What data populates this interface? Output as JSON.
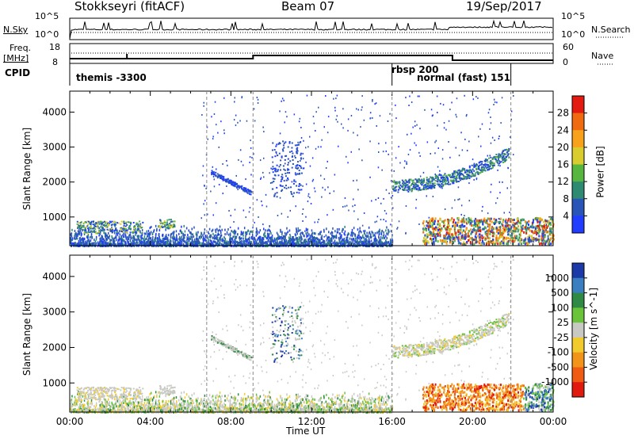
{
  "header": {
    "station": "Stokkseyri (fitACF)",
    "beam": "Beam 07",
    "date": "19/Sep/2017"
  },
  "strip": {
    "nsky_label": "N.Sky",
    "nsky_top": "10^5",
    "nsky_bottom": "10^0",
    "nsearch_label": "N.Search",
    "nsearch_top": "10^5",
    "nsearch_bottom": "10^0",
    "freq_label_1": "Freq.",
    "freq_label_2": "[MHz]",
    "freq_top": "18",
    "freq_bottom": "8",
    "nave_label": "Nave",
    "nave_top": "60",
    "nave_bottom": "0",
    "cpid_label": "CPID",
    "cpid_names": [
      "themis -3300",
      "rbsp 200",
      "normal (fast) 151"
    ]
  },
  "chart_data": [
    {
      "type": "heatmap",
      "panel": "power",
      "xlabel": "",
      "ylabel": "Slant Range [km]",
      "ylim": [
        180,
        4600
      ],
      "xlim": [
        "00:00",
        "24:00"
      ],
      "yticks": [
        1000,
        2000,
        3000,
        4000
      ],
      "colorbar": {
        "label": "Power [dB]",
        "ticks": [
          4,
          8,
          12,
          16,
          20,
          24,
          28
        ],
        "colors": [
          "#1f3cff",
          "#2a55b8",
          "#2f8a72",
          "#56b640",
          "#d8cc2e",
          "#f7a21a",
          "#f06a10",
          "#e21a10"
        ]
      },
      "dashed_times_hours": [
        6.8,
        9.1,
        16.0,
        21.9
      ]
    },
    {
      "type": "heatmap",
      "panel": "velocity",
      "xlabel": "Time UT",
      "ylabel": "Slant Range [km]",
      "ylim": [
        180,
        4600
      ],
      "xlim": [
        "00:00",
        "24:00"
      ],
      "yticks": [
        1000,
        2000,
        3000,
        4000
      ],
      "xticks": [
        "00:00",
        "04:00",
        "08:00",
        "12:00",
        "16:00",
        "20:00",
        "00:00"
      ],
      "colorbar": {
        "label": "Velocity [m s^-1]",
        "ticks": [
          1000,
          500,
          100,
          25,
          -25,
          -100,
          -500,
          -1000
        ],
        "colors": [
          "#1b3aa8",
          "#3a7fc0",
          "#2f8a45",
          "#6ac43a",
          "#c9c9c4",
          "#f1cb2c",
          "#f3941a",
          "#ef5b12",
          "#e11a10"
        ]
      },
      "dashed_times_hours": [
        6.8,
        9.1,
        16.0,
        21.9
      ]
    }
  ]
}
